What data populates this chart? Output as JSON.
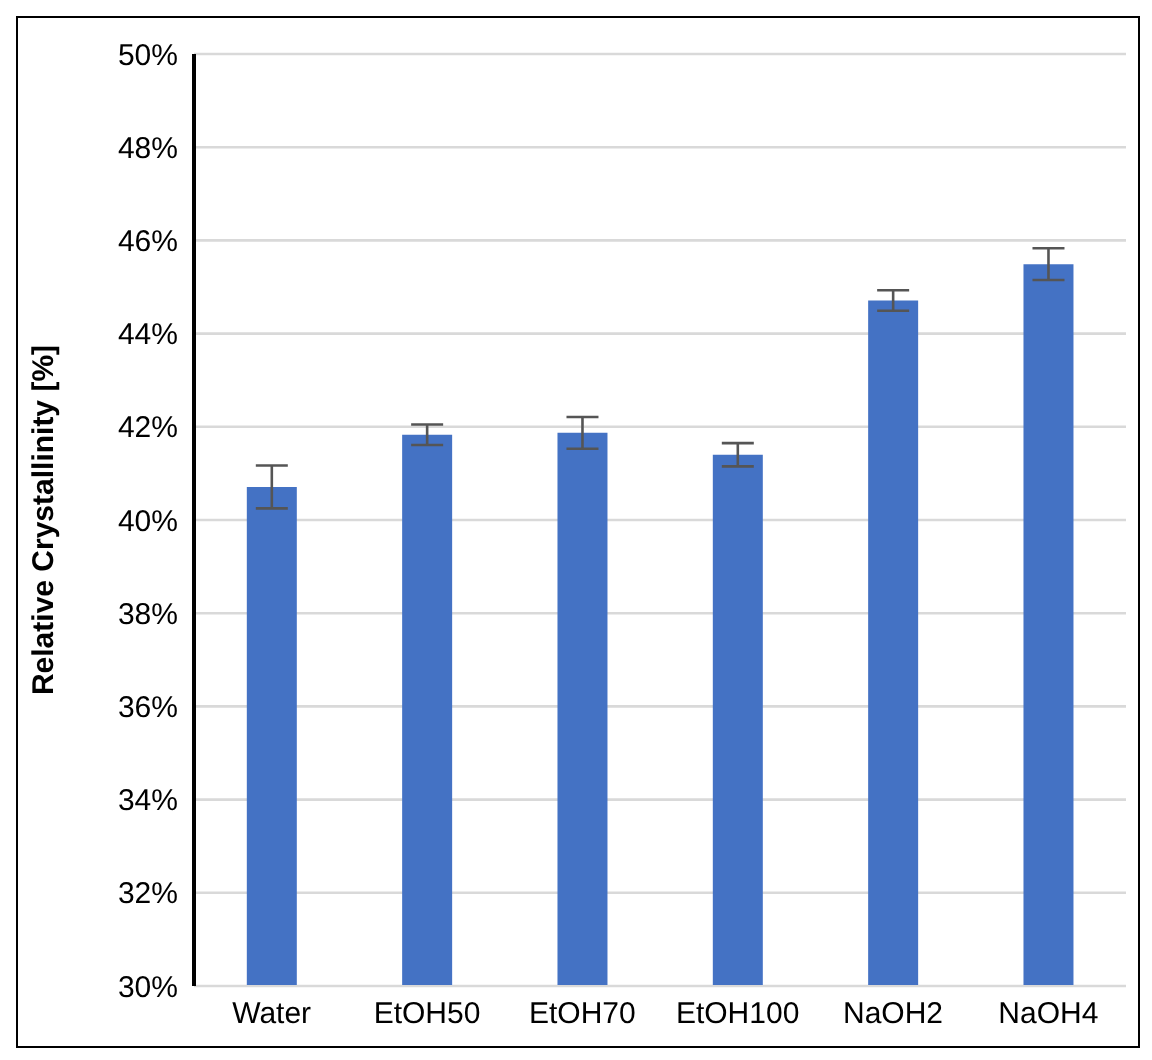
{
  "chart_data": {
    "type": "bar",
    "ylabel": "Relative Crystallinity [%]",
    "categories": [
      "Water",
      "EtOH50",
      "EtOH70",
      "EtOH100",
      "NaOH2",
      "NaOH4"
    ],
    "values": [
      40.71,
      41.83,
      41.87,
      41.4,
      44.71,
      45.49
    ],
    "errors": [
      0.46,
      0.22,
      0.34,
      0.25,
      0.22,
      0.34
    ],
    "color": "#4472c4",
    "ylim": [
      30,
      50
    ],
    "yticks": [
      {
        "value": 30,
        "label": "30%"
      },
      {
        "value": 32,
        "label": "32%"
      },
      {
        "value": 34,
        "label": "34%"
      },
      {
        "value": 36,
        "label": "36%"
      },
      {
        "value": 38,
        "label": "38%"
      },
      {
        "value": 40,
        "label": "40%"
      },
      {
        "value": 42,
        "label": "42%"
      },
      {
        "value": 44,
        "label": "44%"
      },
      {
        "value": 46,
        "label": "46%"
      },
      {
        "value": 48,
        "label": "48%"
      },
      {
        "value": 50,
        "label": "50%"
      }
    ],
    "grid": "y"
  }
}
